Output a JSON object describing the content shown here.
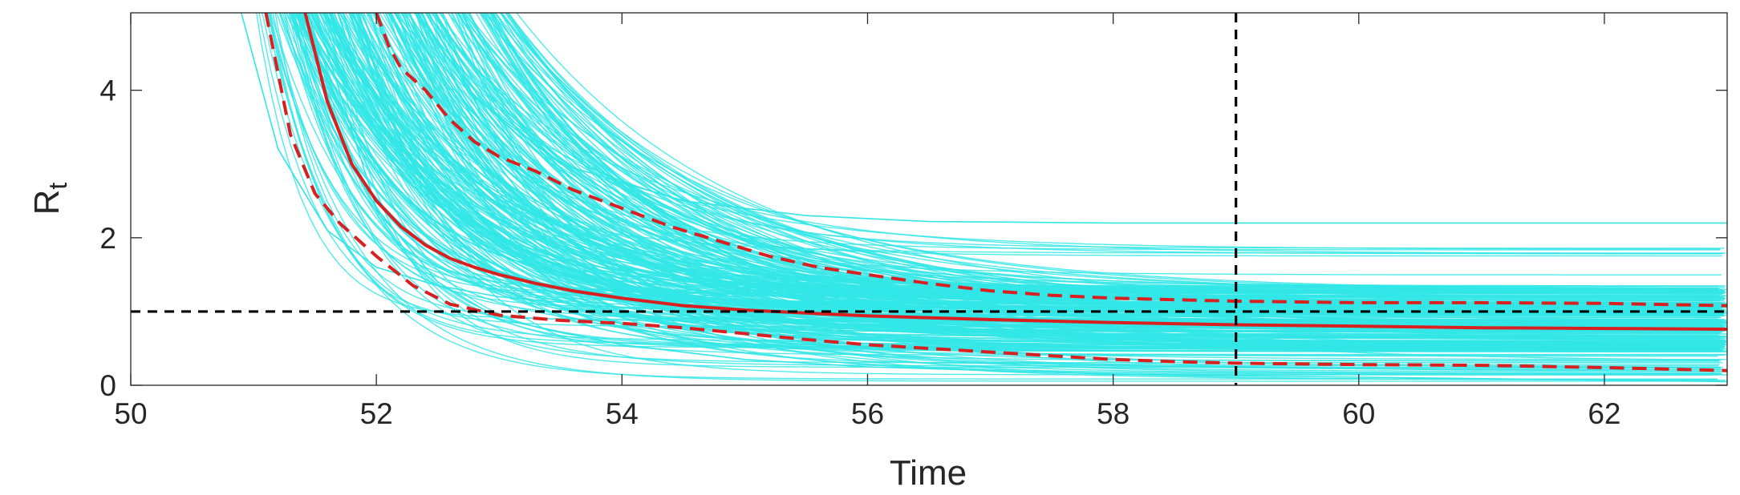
{
  "chart_data": {
    "type": "line",
    "xlabel": "Time",
    "ylabel": "R",
    "ylabel_subscript": "t",
    "xlim": [
      50,
      63
    ],
    "ylim": [
      0,
      5.05
    ],
    "xticks": [
      50,
      52,
      54,
      56,
      58,
      60,
      62
    ],
    "yticks": [
      0,
      2,
      4
    ],
    "xtick_labels": [
      "50",
      "52",
      "54",
      "56",
      "58",
      "60",
      "62"
    ],
    "ytick_labels": [
      "0",
      "2",
      "4"
    ],
    "grid": false,
    "legend": "none",
    "ensemble": {
      "description": "",
      "color": "#33e6e6",
      "count": 300,
      "start_range": [
        50.9,
        52.6
      ],
      "end_range": [
        0.05,
        2.2
      ],
      "examples": [
        {
          "x": [
            50.9,
            51.2,
            51.6,
            52.0,
            52.5,
            53.0,
            54.0,
            56.0,
            58.0,
            63.0
          ],
          "y": [
            5.05,
            3.2,
            2.1,
            1.6,
            1.35,
            1.2,
            1.05,
            0.95,
            0.9,
            0.85
          ]
        },
        {
          "x": [
            52.4,
            52.8,
            53.5,
            54.5,
            55.5,
            56.5,
            58.0,
            60.0,
            63.0
          ],
          "y": [
            5.05,
            3.9,
            3.0,
            2.5,
            2.3,
            2.22,
            2.2,
            2.2,
            2.2
          ]
        },
        {
          "x": [
            51.5,
            52.0,
            52.5,
            53.0,
            54.0,
            55.0,
            56.0,
            58.0,
            63.0
          ],
          "y": [
            5.05,
            2.4,
            1.4,
            0.9,
            0.55,
            0.35,
            0.25,
            0.15,
            0.05
          ]
        }
      ]
    },
    "series": [
      {
        "style": "solid",
        "color": "#d92020",
        "x": [
          51.42,
          51.6,
          51.8,
          52.0,
          52.2,
          52.4,
          52.6,
          52.8,
          53.0,
          53.3,
          53.6,
          54.0,
          54.5,
          55.0,
          55.5,
          56.0,
          57.0,
          58.0,
          59.0,
          60.0,
          61.0,
          62.0,
          63.0
        ],
        "y": [
          5.05,
          3.85,
          3.0,
          2.5,
          2.15,
          1.9,
          1.72,
          1.6,
          1.5,
          1.38,
          1.28,
          1.18,
          1.08,
          1.02,
          0.98,
          0.94,
          0.89,
          0.85,
          0.82,
          0.8,
          0.78,
          0.77,
          0.76
        ]
      },
      {
        "style": "dashed",
        "color": "#d92020",
        "x": [
          52.0,
          52.1,
          52.2,
          52.4,
          52.6,
          52.8,
          53.0,
          53.3,
          53.6,
          54.0,
          54.4,
          54.8,
          55.2,
          55.6,
          56.0,
          56.5,
          57.0,
          57.5,
          58.0,
          58.5,
          59.0,
          60.0,
          61.0,
          62.0,
          63.0
        ],
        "y": [
          5.05,
          4.6,
          4.3,
          4.0,
          3.6,
          3.3,
          3.1,
          2.9,
          2.65,
          2.4,
          2.15,
          1.95,
          1.75,
          1.6,
          1.5,
          1.38,
          1.28,
          1.22,
          1.18,
          1.16,
          1.14,
          1.12,
          1.12,
          1.11,
          1.08
        ]
      },
      {
        "style": "dashed",
        "color": "#d92020",
        "x": [
          51.1,
          51.3,
          51.5,
          51.7,
          52.0,
          52.3,
          52.6,
          53.0,
          53.5,
          54.0,
          54.5,
          55.0,
          55.5,
          56.0,
          56.5,
          57.0,
          57.5,
          58.0,
          58.5,
          59.0,
          60.0,
          61.0,
          62.0,
          63.0
        ],
        "y": [
          5.05,
          3.4,
          2.6,
          2.2,
          1.75,
          1.35,
          1.1,
          0.95,
          0.88,
          0.84,
          0.78,
          0.7,
          0.62,
          0.55,
          0.5,
          0.45,
          0.4,
          0.35,
          0.32,
          0.3,
          0.28,
          0.27,
          0.24,
          0.2
        ]
      }
    ],
    "reference_lines": [
      {
        "orientation": "horizontal",
        "y": 1,
        "style": "dashed",
        "color": "#000000"
      },
      {
        "orientation": "vertical",
        "x": 59,
        "style": "dashed",
        "color": "#000000"
      }
    ]
  }
}
